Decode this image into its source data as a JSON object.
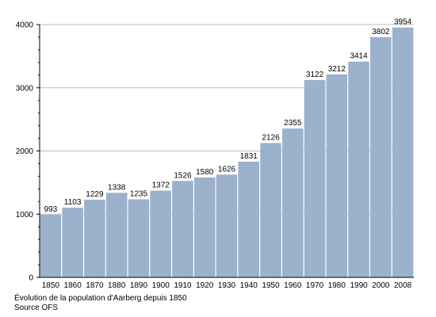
{
  "colors": {
    "bar": "#9cb1cc",
    "grid": "#bdbdbd",
    "axis": "#000000"
  },
  "chart_data": {
    "type": "bar",
    "categories": [
      "1850",
      "1860",
      "1870",
      "1880",
      "1890",
      "1900",
      "1910",
      "1920",
      "1930",
      "1940",
      "1950",
      "1960",
      "1970",
      "1980",
      "1990",
      "2000",
      "2008"
    ],
    "values": [
      993,
      1103,
      1229,
      1338,
      1235,
      1372,
      1526,
      1580,
      1626,
      1831,
      2126,
      2355,
      3122,
      3212,
      3414,
      3802,
      3954
    ],
    "ylim": [
      0,
      4000
    ],
    "yticks": [
      0,
      1000,
      2000,
      3000,
      4000
    ],
    "grid": true,
    "title": "",
    "xlabel": "",
    "ylabel": ""
  },
  "caption": {
    "line1": "Évolution de la population d'Aarberg depuis 1850",
    "line2": "Source OFS"
  }
}
